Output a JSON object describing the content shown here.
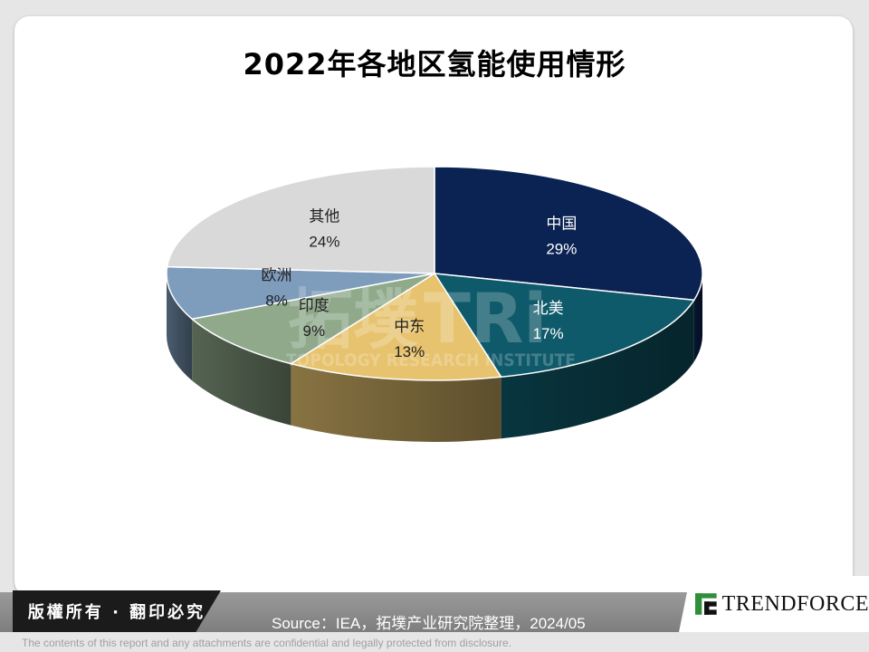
{
  "chart_data": {
    "type": "pie",
    "title": "2022年各地区氢能使用情形",
    "categories": [
      "中国",
      "北美",
      "中东",
      "印度",
      "欧洲",
      "其他"
    ],
    "values": [
      29,
      17,
      13,
      9,
      8,
      24
    ],
    "labels": [
      "29%",
      "17%",
      "13%",
      "9%",
      "8%",
      "24%"
    ],
    "colors": [
      "#0b2352",
      "#0f5a6a",
      "#e7c36f",
      "#8fa98a",
      "#7e9cbc",
      "#d9d9d9"
    ]
  },
  "watermark": {
    "brand_cn": "拓墣",
    "brand_en": "TRi",
    "tagline": "TOPOLOGY RESEARCH INSTITUTE"
  },
  "footer": {
    "copyright": "版權所有 · 翻印必究",
    "source": "Source：IEA，拓墣产业研究院整理，2024/05",
    "logo": "TRENDFORCE",
    "disclaimer": "The contents of this report and any attachments are confidential and legally protected from disclosure."
  }
}
